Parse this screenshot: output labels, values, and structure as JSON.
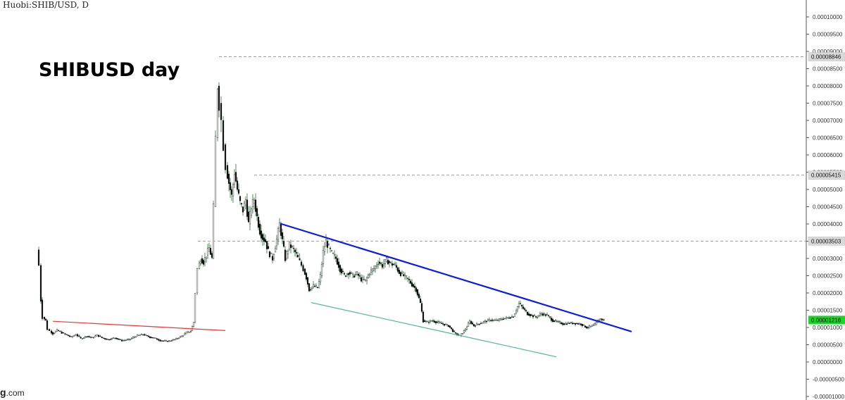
{
  "header": {
    "symbol": "Huobi:SHIB/USD, D"
  },
  "watermark": {
    "prefix": "g",
    "suffix": ".com"
  },
  "colors": {
    "candle_up": "#ffffff",
    "candle_down": "#000000",
    "wick": "#2f6b3a",
    "trend_blue": "#0a1be6",
    "trend_red": "#e53935",
    "trend_teal": "#4db6a0",
    "last_price_badge": "#1cd42a",
    "level_line": "#9e9e9e"
  },
  "chart_data": {
    "type": "candlestick",
    "title": "SHIBUSD  day",
    "xlabel": "",
    "ylabel": "",
    "ylim": [
      -1e-05,
      0.0001
    ],
    "y_ticks": [
      "0.00010000",
      "0.00009500",
      "0.00009000",
      "0.00008500",
      "0.00008000",
      "0.00007500",
      "0.00007000",
      "0.00006500",
      "0.00006000",
      "0.00005500",
      "0.00005000",
      "0.00004500",
      "0.00004000",
      "0.00003500",
      "0.00003000",
      "0.00002500",
      "0.00002000",
      "0.00001500",
      "0.00001000",
      "0.00000500",
      "0.00000000",
      "-0.00000500",
      "-0.00001000"
    ],
    "y_tick_values": [
      0.0001,
      9.5e-05,
      9e-05,
      8.5e-05,
      8e-05,
      7.5e-05,
      7e-05,
      6.5e-05,
      6e-05,
      5.5e-05,
      5e-05,
      4.5e-05,
      4e-05,
      3.5e-05,
      3e-05,
      2.5e-05,
      2e-05,
      1.5e-05,
      1e-05,
      5e-06,
      0,
      -5e-06,
      -1e-05
    ],
    "x_range": [
      0,
      830
    ],
    "price_path": [
      [
        0,
        3.25e-05
      ],
      [
        3,
        2.8e-05
      ],
      [
        5,
        1.8e-05
      ],
      [
        8,
        1.3e-05
      ],
      [
        12,
        1.2e-05
      ],
      [
        15,
        9.5e-06
      ],
      [
        18,
        9e-06
      ],
      [
        22,
        8.2e-06
      ],
      [
        28,
        9.2e-06
      ],
      [
        35,
        8.5e-06
      ],
      [
        40,
        8e-06
      ],
      [
        48,
        7.2e-06
      ],
      [
        55,
        8e-06
      ],
      [
        62,
        6.8e-06
      ],
      [
        70,
        7.5e-06
      ],
      [
        78,
        7e-06
      ],
      [
        85,
        7.8e-06
      ],
      [
        92,
        7e-06
      ],
      [
        100,
        6.5e-06
      ],
      [
        110,
        7e-06
      ],
      [
        120,
        6.2e-06
      ],
      [
        130,
        6.5e-06
      ],
      [
        140,
        7.5e-06
      ],
      [
        150,
        8e-06
      ],
      [
        160,
        7.2e-06
      ],
      [
        168,
        6.8e-06
      ],
      [
        175,
        6.2e-06
      ],
      [
        185,
        6e-06
      ],
      [
        195,
        6.5e-06
      ],
      [
        205,
        7.5e-06
      ],
      [
        212,
        8.5e-06
      ],
      [
        218,
        9e-06
      ],
      [
        222,
        1.15e-05
      ],
      [
        225,
        2e-05
      ],
      [
        228,
        2.7e-05
      ],
      [
        232,
        3e-05
      ],
      [
        236,
        2.9e-05
      ],
      [
        240,
        3.1e-05
      ],
      [
        244,
        3.3e-05
      ],
      [
        248,
        3e-05
      ],
      [
        251,
        4.5e-05
      ],
      [
        254,
        6.5e-05
      ],
      [
        256,
        8e-05
      ],
      [
        259,
        7.5e-05
      ],
      [
        262,
        7e-05
      ],
      [
        265,
        6.3e-05
      ],
      [
        268,
        5.7e-05
      ],
      [
        272,
        5.2e-05
      ],
      [
        276,
        4.8e-05
      ],
      [
        280,
        5.5e-05
      ],
      [
        284,
        5e-05
      ],
      [
        288,
        4.6e-05
      ],
      [
        292,
        4.4e-05
      ],
      [
        296,
        4.7e-05
      ],
      [
        300,
        4e-05
      ],
      [
        304,
        4.5e-05
      ],
      [
        308,
        4.7e-05
      ],
      [
        312,
        4.2e-05
      ],
      [
        316,
        3.8e-05
      ],
      [
        320,
        3.6e-05
      ],
      [
        324,
        3.5e-05
      ],
      [
        328,
        3.2e-05
      ],
      [
        334,
        3e-05
      ],
      [
        340,
        3.55e-05
      ],
      [
        344,
        4e-05
      ],
      [
        348,
        3.5e-05
      ],
      [
        352,
        3e-05
      ],
      [
        358,
        3.4e-05
      ],
      [
        364,
        3.25e-05
      ],
      [
        368,
        3.1e-05
      ],
      [
        373,
        2.9e-05
      ],
      [
        378,
        2.7e-05
      ],
      [
        382,
        2.45e-05
      ],
      [
        386,
        2.1e-05
      ],
      [
        392,
        2.2e-05
      ],
      [
        398,
        2.15e-05
      ],
      [
        402,
        2.5e-05
      ],
      [
        406,
        3.2e-05
      ],
      [
        410,
        3.5e-05
      ],
      [
        414,
        3.3e-05
      ],
      [
        418,
        3.15e-05
      ],
      [
        424,
        3e-05
      ],
      [
        430,
        2.7e-05
      ],
      [
        436,
        2.5e-05
      ],
      [
        442,
        2.6e-05
      ],
      [
        448,
        2.5e-05
      ],
      [
        454,
        2.55e-05
      ],
      [
        460,
        2.4e-05
      ],
      [
        466,
        2.35e-05
      ],
      [
        472,
        2.6e-05
      ],
      [
        478,
        2.7e-05
      ],
      [
        484,
        2.9e-05
      ],
      [
        490,
        2.8e-05
      ],
      [
        496,
        2.95e-05
      ],
      [
        502,
        2.85e-05
      ],
      [
        508,
        2.8e-05
      ],
      [
        514,
        2.6e-05
      ],
      [
        520,
        2.5e-05
      ],
      [
        526,
        2.4e-05
      ],
      [
        532,
        2.25e-05
      ],
      [
        538,
        2.1e-05
      ],
      [
        544,
        1.7e-05
      ],
      [
        548,
        1.2e-05
      ],
      [
        554,
        1.15e-05
      ],
      [
        560,
        1.2e-05
      ],
      [
        568,
        1.15e-05
      ],
      [
        576,
        1.1e-05
      ],
      [
        584,
        1.05e-05
      ],
      [
        592,
        8.5e-06
      ],
      [
        600,
        7.5e-06
      ],
      [
        608,
        9.5e-06
      ],
      [
        614,
        1.18e-05
      ],
      [
        620,
        1.05e-05
      ],
      [
        628,
        1.12e-05
      ],
      [
        636,
        1.18e-05
      ],
      [
        644,
        1.22e-05
      ],
      [
        652,
        1.2e-05
      ],
      [
        660,
        1.25e-05
      ],
      [
        668,
        1.28e-05
      ],
      [
        676,
        1.32e-05
      ],
      [
        684,
        1.7e-05
      ],
      [
        690,
        1.55e-05
      ],
      [
        696,
        1.4e-05
      ],
      [
        702,
        1.35e-05
      ],
      [
        708,
        1.3e-05
      ],
      [
        716,
        1.4e-05
      ],
      [
        724,
        1.35e-05
      ],
      [
        732,
        1.2e-05
      ],
      [
        740,
        1.15e-05
      ],
      [
        748,
        1.1e-05
      ],
      [
        756,
        1.13e-05
      ],
      [
        764,
        1.12e-05
      ],
      [
        772,
        1.1e-05
      ],
      [
        780,
        1e-05
      ],
      [
        786,
        1.03e-05
      ],
      [
        792,
        1.08e-05
      ],
      [
        796,
        1.2e-05
      ],
      [
        800,
        1.25e-05
      ],
      [
        805,
        1.21e-05
      ]
    ],
    "horizontal_levels": [
      {
        "label": "0.00008846",
        "value": 8.846e-05,
        "x_start": 256
      },
      {
        "label": "0.00005415",
        "value": 5.415e-05,
        "x_start": 306
      },
      {
        "label": "0.00003503",
        "value": 3.503e-05,
        "x_start": 226
      }
    ],
    "last_price": {
      "label": "0.00001216",
      "value": 1.216e-05
    },
    "trendlines": [
      {
        "color_key": "trend_blue",
        "from": [
          343,
          4.01e-05
        ],
        "to": [
          842,
          8.8e-06
        ],
        "width": 2.2
      },
      {
        "color_key": "trend_red",
        "from": [
          20,
          1.18e-05
        ],
        "to": [
          265,
          9.1e-06
        ],
        "width": 1.2
      },
      {
        "color_key": "trend_teal",
        "from": [
          387,
          1.72e-05
        ],
        "to": [
          735,
          1.5e-06
        ],
        "width": 1.2
      }
    ]
  }
}
